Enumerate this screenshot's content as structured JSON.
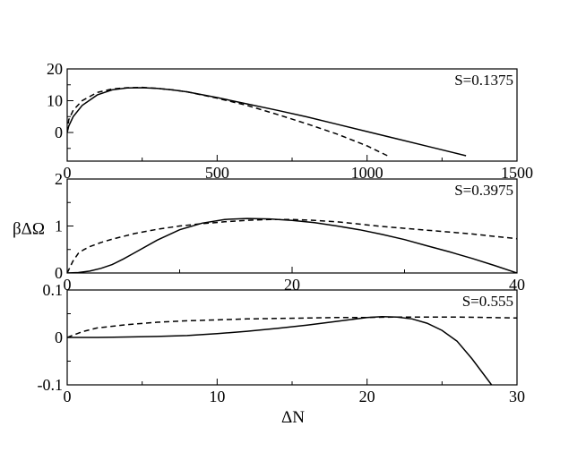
{
  "figure": {
    "ylabel": "βΔΩ",
    "xlabel": "ΔN"
  },
  "chart_data": [
    {
      "type": "line",
      "annotation": "S=0.1375",
      "xlim": [
        0,
        1500
      ],
      "ylim": [
        -9,
        20
      ],
      "xticks": [
        0,
        500,
        1000,
        1500
      ],
      "xtick_labels": [
        "0",
        "500",
        "1000",
        "1500"
      ],
      "yticks": [
        0,
        10,
        20
      ],
      "ytick_labels": [
        "0",
        "10",
        "20"
      ],
      "series": [
        {
          "style": "solid",
          "x": [
            0,
            5,
            20,
            50,
            100,
            150,
            200,
            250,
            300,
            350,
            400,
            500,
            600,
            700,
            800,
            900,
            1000,
            1100,
            1200,
            1330
          ],
          "y": [
            0,
            2.0,
            5.0,
            8.5,
            11.8,
            13.4,
            14.0,
            14.1,
            13.9,
            13.4,
            12.8,
            11.0,
            9.0,
            7.0,
            4.9,
            2.6,
            0.3,
            -2.0,
            -4.3,
            -7.3
          ]
        },
        {
          "style": "dashed",
          "x": [
            0,
            5,
            20,
            50,
            100,
            150,
            200,
            250,
            300,
            350,
            400,
            500,
            600,
            700,
            800,
            900,
            1000,
            1070
          ],
          "y": [
            0,
            4.0,
            7.0,
            10.0,
            12.6,
            13.7,
            14.1,
            14.2,
            13.9,
            13.4,
            12.8,
            10.8,
            8.5,
            5.7,
            2.7,
            -0.5,
            -4.2,
            -7.4
          ]
        }
      ]
    },
    {
      "type": "line",
      "annotation": "S=0.3975",
      "xlim": [
        0,
        40
      ],
      "ylim": [
        0,
        2
      ],
      "xticks": [
        0,
        20,
        40
      ],
      "xtick_labels": [
        "0",
        "20",
        "40"
      ],
      "yticks": [
        0,
        1,
        2
      ],
      "ytick_labels": [
        "0",
        "1",
        "2"
      ],
      "series": [
        {
          "style": "solid",
          "x": [
            0,
            1,
            2,
            3,
            4,
            5,
            6,
            8,
            10,
            12,
            14,
            16,
            18,
            20,
            22,
            24,
            26,
            28,
            30,
            32,
            34,
            36,
            38,
            40
          ],
          "y": [
            0,
            0.01,
            0.04,
            0.1,
            0.18,
            0.3,
            0.43,
            0.7,
            0.92,
            1.06,
            1.14,
            1.16,
            1.15,
            1.12,
            1.07,
            1.0,
            0.92,
            0.82,
            0.71,
            0.58,
            0.45,
            0.31,
            0.16,
            0
          ]
        },
        {
          "style": "dashed",
          "x": [
            0,
            0.5,
            1,
            1.5,
            2,
            3,
            4,
            6,
            8,
            10,
            12,
            14,
            16,
            18,
            20,
            22,
            24,
            26,
            28,
            30,
            32,
            34,
            36,
            38,
            40
          ],
          "y": [
            0,
            0.25,
            0.42,
            0.5,
            0.56,
            0.65,
            0.72,
            0.84,
            0.93,
            1.0,
            1.05,
            1.09,
            1.12,
            1.14,
            1.14,
            1.12,
            1.09,
            1.04,
            0.99,
            0.95,
            0.91,
            0.87,
            0.83,
            0.78,
            0.73
          ]
        }
      ]
    },
    {
      "type": "line",
      "annotation": "S=0.555",
      "xlim": [
        0,
        30
      ],
      "ylim": [
        -0.1,
        0.1
      ],
      "xticks": [
        0,
        10,
        20,
        30
      ],
      "xtick_labels": [
        "0",
        "10",
        "20",
        "30"
      ],
      "yticks": [
        -0.1,
        0,
        0.1
      ],
      "ytick_labels": [
        "-0.1",
        "0",
        "0.1"
      ],
      "series": [
        {
          "style": "solid",
          "x": [
            0,
            2,
            4,
            6,
            8,
            10,
            12,
            14,
            16,
            18,
            19,
            20,
            21,
            22,
            23,
            24,
            25,
            26,
            27,
            28.3
          ],
          "y": [
            0,
            0.0,
            0.001,
            0.002,
            0.004,
            0.008,
            0.013,
            0.019,
            0.026,
            0.034,
            0.038,
            0.042,
            0.044,
            0.043,
            0.039,
            0.03,
            0.015,
            -0.008,
            -0.045,
            -0.1
          ]
        },
        {
          "style": "dashed",
          "x": [
            0,
            1,
            2,
            4,
            6,
            8,
            10,
            12,
            14,
            16,
            18,
            20,
            22,
            24,
            26,
            28,
            30
          ],
          "y": [
            0,
            0.012,
            0.02,
            0.027,
            0.032,
            0.035,
            0.037,
            0.039,
            0.04,
            0.041,
            0.042,
            0.042,
            0.043,
            0.043,
            0.043,
            0.042,
            0.041
          ]
        }
      ]
    }
  ]
}
